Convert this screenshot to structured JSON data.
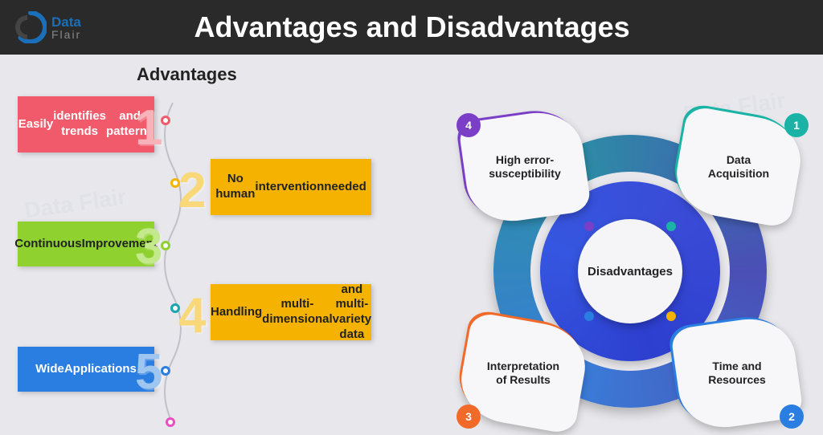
{
  "header": {
    "logo_top": "Data",
    "logo_bottom": "Flair",
    "title": "Advantages and Disadvantages",
    "logo_colors": {
      "outer": "#1a6fb8",
      "inner": "#2a2a2a"
    }
  },
  "background_color": "#e8e8ec",
  "header_bg": "#2a2a2a",
  "advantages": {
    "heading": "Advantages",
    "connector_color": "#c0c0c8",
    "items": [
      {
        "num": "1",
        "label": "Easily\nidentifies trends\nand patterns",
        "box_color": "#f05a6b",
        "text_white": true,
        "num_color": "#f8b2b9",
        "dot_color": "#f05a6b",
        "side": "left"
      },
      {
        "num": "2",
        "label": "No human\nintervention\nneeded",
        "box_color": "#f5b300",
        "text_white": false,
        "num_color": "#f9d87a",
        "dot_color": "#f5b300",
        "side": "right"
      },
      {
        "num": "3",
        "label": "Continuous\nImprovement",
        "box_color": "#8fd12f",
        "text_white": false,
        "num_color": "#c4e88c",
        "dot_color": "#8fd12f",
        "side": "left"
      },
      {
        "num": "4",
        "label": "Handling\nmulti-dimensional\nand multi-variety data",
        "box_color": "#f5b300",
        "text_white": false,
        "num_color": "#f9d87a",
        "dot_color": "#1aa5b0",
        "side": "right"
      },
      {
        "num": "5",
        "label": "Wide\nApplications",
        "box_color": "#2a7de1",
        "text_white": true,
        "num_color": "#9ec6f0",
        "dot_color": "#2a7de1",
        "side": "left"
      }
    ],
    "end_dot_color": "#e84fc1"
  },
  "disadvantages": {
    "center_label": "Disadvantages",
    "ring_outer_colors": [
      "#4a4fb5",
      "#3a7dd9",
      "#2b8fa5"
    ],
    "ring_inner_color": "#3a4bd6",
    "items": [
      {
        "num": "1",
        "label": "Data\nAcquisition",
        "accent": "#1ab3a6",
        "pos": "tr"
      },
      {
        "num": "2",
        "label": "Time and\nResources",
        "accent": "#2a7de1",
        "pos": "br"
      },
      {
        "num": "3",
        "label": "Interpretation\nof Results",
        "accent": "#f26a2a",
        "pos": "bl"
      },
      {
        "num": "4",
        "label": "High error-\nsusceptibility",
        "accent": "#7a3fc6",
        "pos": "tl"
      }
    ],
    "ring_dots": [
      {
        "color": "#1ab3a6",
        "angle": -48
      },
      {
        "color": "#f5b300",
        "angle": 48
      },
      {
        "color": "#2a7de1",
        "angle": 132
      },
      {
        "color": "#7a3fc6",
        "angle": 228
      }
    ]
  }
}
